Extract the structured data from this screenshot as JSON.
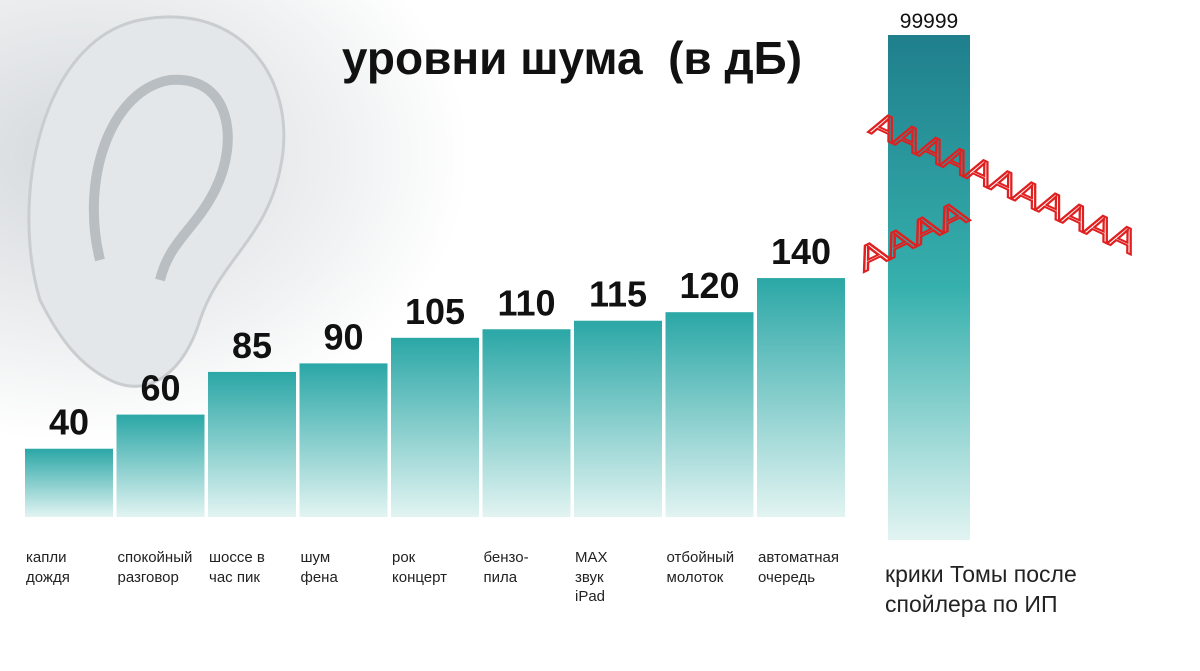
{
  "chart_data": [
    {
      "type": "bar",
      "title": "уровни шума  (в дБ)",
      "categories": [
        "капли\nдождя",
        "спокойный\nразговор",
        "шоссе в\nчас пик",
        "шум\nфена",
        "рок\nконцерт",
        "бензо-\nпила",
        "MAX\nзвук\niPad",
        "отбойный\nмолоток",
        "автоматная\nочередь"
      ],
      "values": [
        40,
        60,
        85,
        90,
        105,
        110,
        115,
        120,
        140
      ],
      "color": "#2aa7a6",
      "ylim": [
        0,
        150
      ]
    },
    {
      "type": "bar",
      "categories": [
        "крики Томы после\nспойлера по ИП"
      ],
      "values": [
        99999
      ],
      "color": "#1f8a93",
      "ylim": [
        0,
        99999
      ],
      "annotations": [
        "ААААААААААА",
        "АААА"
      ]
    }
  ]
}
